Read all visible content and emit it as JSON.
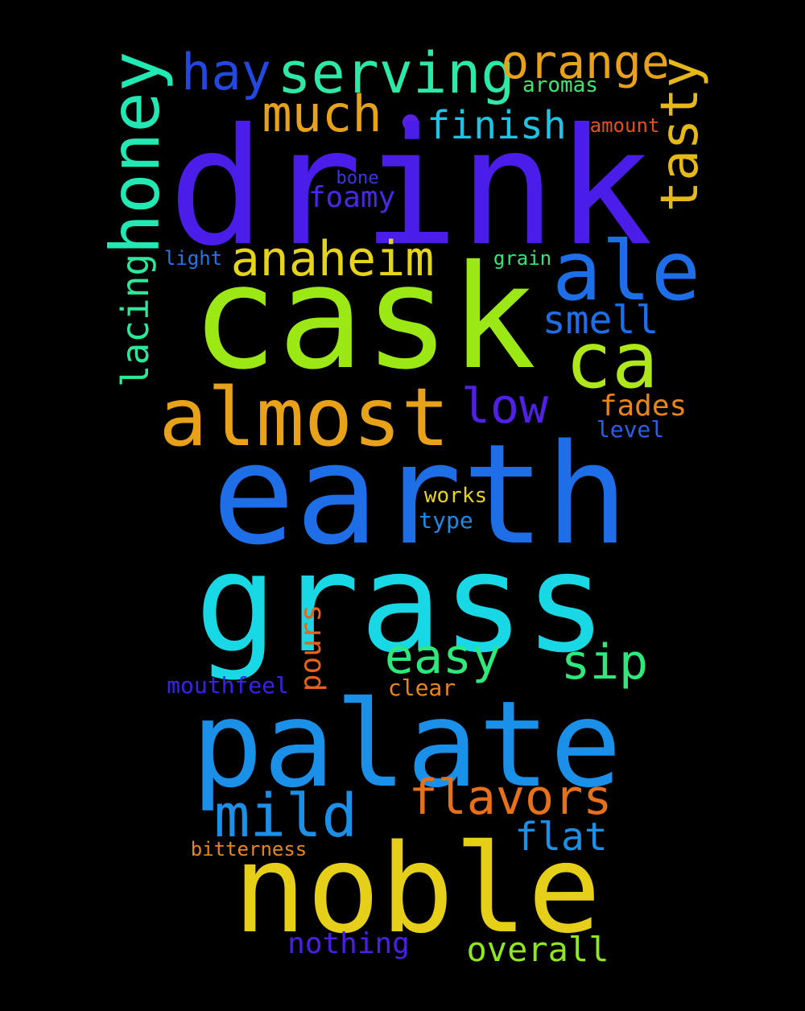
{
  "background": "#000000",
  "dot_color": "#5a22e0",
  "words": {
    "drink": {
      "text": "drink",
      "color": "#4a1ee8"
    },
    "cask": {
      "text": "cask",
      "color": "#9be815"
    },
    "earth": {
      "text": "earth",
      "color": "#1e6ee8"
    },
    "grass": {
      "text": "grass",
      "color": "#19d8e6"
    },
    "palate": {
      "text": "palate",
      "color": "#1a90e8"
    },
    "noble": {
      "text": "noble",
      "color": "#e6cf18"
    },
    "almost": {
      "text": "almost",
      "color": "#e8a21a"
    },
    "ale": {
      "text": "ale",
      "color": "#1e6ee8"
    },
    "ca": {
      "text": "ca",
      "color": "#aee81a"
    },
    "honey": {
      "text": "honey",
      "color": "#22e8b4"
    },
    "serving": {
      "text": "serving",
      "color": "#2ee8a8"
    },
    "orange": {
      "text": "orange",
      "color": "#e8a21a"
    },
    "hay": {
      "text": "hay",
      "color": "#2348e2"
    },
    "much": {
      "text": "much",
      "color": "#e8a21a"
    },
    "finish": {
      "text": "finish",
      "color": "#1fc3e6"
    },
    "tasty": {
      "text": "tasty",
      "color": "#e6b818"
    },
    "anaheim": {
      "text": "anaheim",
      "color": "#e6d418"
    },
    "smell": {
      "text": "smell",
      "color": "#1e6ee8"
    },
    "low": {
      "text": "low",
      "color": "#5020e6"
    },
    "fades": {
      "text": "fades",
      "color": "#e8861a"
    },
    "level": {
      "text": "level",
      "color": "#2860e6"
    },
    "lacing": {
      "text": "lacing",
      "color": "#2ee89a"
    },
    "foamy": {
      "text": "foamy",
      "color": "#4a28e6"
    },
    "bone": {
      "text": "bone",
      "color": "#3a36e0"
    },
    "light": {
      "text": "light",
      "color": "#1e78e8"
    },
    "grain": {
      "text": "grain",
      "color": "#2ee87a"
    },
    "aromas": {
      "text": "aromas",
      "color": "#3ee870"
    },
    "amount": {
      "text": "amount",
      "color": "#e8501a"
    },
    "works": {
      "text": "works",
      "color": "#e6d418"
    },
    "type": {
      "text": "type",
      "color": "#1e8ae8"
    },
    "easy": {
      "text": "easy",
      "color": "#2ee87c"
    },
    "sip": {
      "text": "sip",
      "color": "#2ee87c"
    },
    "pours": {
      "text": "pours",
      "color": "#e8621a"
    },
    "mouthfeel": {
      "text": "mouthfeel",
      "color": "#3a22e6"
    },
    "clear": {
      "text": "clear",
      "color": "#e8861a"
    },
    "flavors": {
      "text": "flavors",
      "color": "#e8701a"
    },
    "mild": {
      "text": "mild",
      "color": "#1a90e8"
    },
    "flat": {
      "text": "flat",
      "color": "#1a90e8"
    },
    "bitterness": {
      "text": "bitterness",
      "color": "#e8861a"
    },
    "nothing": {
      "text": "nothing",
      "color": "#4a20e6"
    },
    "overall": {
      "text": "overall",
      "color": "#8ee81a"
    }
  }
}
